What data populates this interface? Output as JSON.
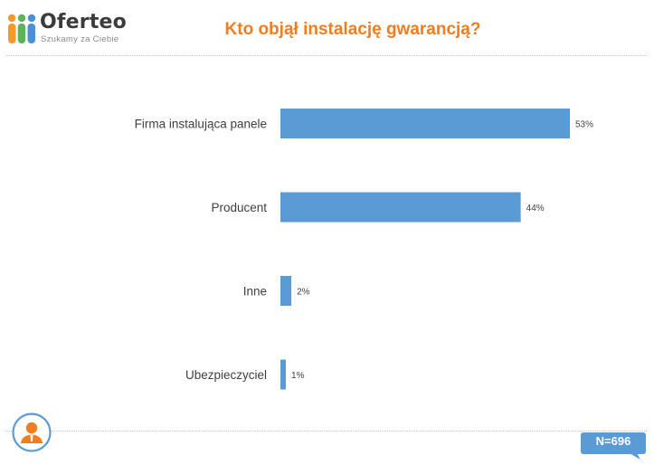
{
  "brand": {
    "name": "Oferteo",
    "tagline": "Szukamy za Ciebie"
  },
  "header": {
    "title": "Kto objął instalację gwarancją?"
  },
  "footer": {
    "n_label": "N=696"
  },
  "colors": {
    "bar": "#5b9bd5",
    "title": "#ef7d22",
    "badge": "#5b9bd5"
  },
  "icons": {
    "logo": "oferteo-logo-icon",
    "avatar": "person-icon",
    "badge": "speech-bubble-icon"
  },
  "chart_data": {
    "type": "bar",
    "orientation": "horizontal",
    "categories": [
      "Firma instalująca panele",
      "Producent",
      "Inne",
      "Ubezpieczyciel"
    ],
    "values": [
      53,
      44,
      2,
      1
    ],
    "value_labels": [
      "53%",
      "44%",
      "2%",
      "1%"
    ],
    "unit": "%",
    "xlim": [
      0,
      60
    ],
    "grid": false,
    "legend": "none"
  }
}
